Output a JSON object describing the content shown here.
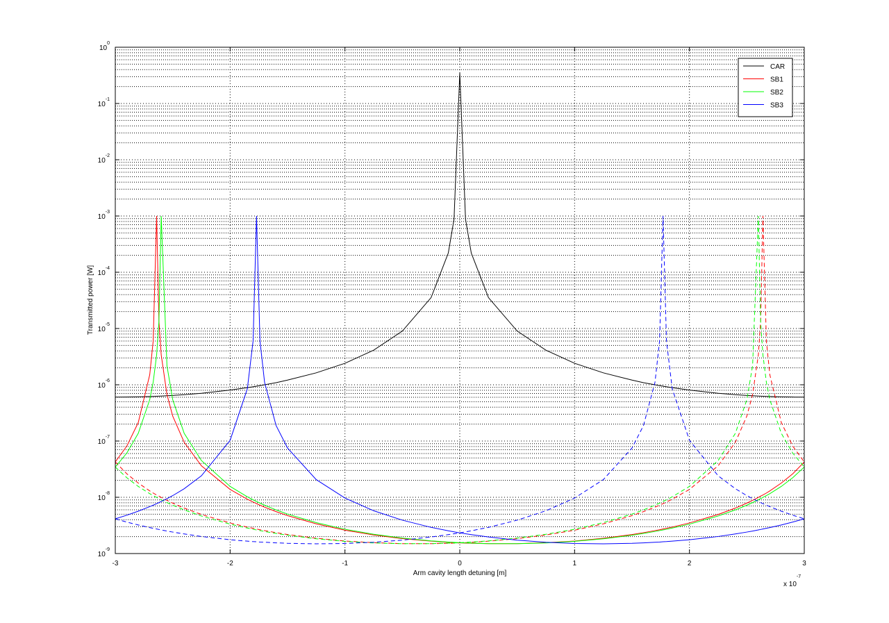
{
  "chart_data": {
    "type": "line",
    "x_label": "Arm cavity length detuning [m]",
    "y_label": "Transmitted power [W]",
    "x_scale_label": "x 10",
    "x_scale_exponent": "-7",
    "log_y": true,
    "grid": true,
    "minor_grid": true,
    "legend": "northeast",
    "xlim": [
      -3,
      3
    ],
    "xticks": [
      -3,
      -2,
      -1,
      0,
      1,
      2,
      3
    ],
    "ylim": [
      1e-09,
      1
    ],
    "yticks": [
      {
        "value": 1e-09,
        "label": "10",
        "exponent": "-9"
      },
      {
        "value": 1e-08,
        "label": "10",
        "exponent": "-8"
      },
      {
        "value": 1e-07,
        "label": "10",
        "exponent": "-7"
      },
      {
        "value": 1e-06,
        "label": "10",
        "exponent": "-6"
      },
      {
        "value": 1e-05,
        "label": "10",
        "exponent": "-5"
      },
      {
        "value": 0.0001,
        "label": "10",
        "exponent": "-4"
      },
      {
        "value": 0.001,
        "label": "10",
        "exponent": "-3"
      },
      {
        "value": 0.01,
        "label": "10",
        "exponent": "-2"
      },
      {
        "value": 0.1,
        "label": "10",
        "exponent": "-1"
      },
      {
        "value": 1,
        "label": "10",
        "exponent": "0"
      }
    ],
    "x": [
      -3,
      -2.9,
      -2.8,
      -2.7,
      -2.67,
      -2.64,
      -2.62,
      -2.6,
      -2.55,
      -2.5,
      -2.4,
      -2.25,
      -2,
      -1.85,
      -1.8,
      -1.77,
      -1.74,
      -1.7,
      -1.6,
      -1.5,
      -1.25,
      -1,
      -0.75,
      -0.5,
      -0.25,
      -0.1,
      -0.05,
      0,
      0.05,
      0.1,
      0.25,
      0.5,
      0.75,
      1,
      1.25,
      1.5,
      1.6,
      1.7,
      1.74,
      1.77,
      1.8,
      1.85,
      2,
      2.25,
      2.4,
      2.5,
      2.55,
      2.6,
      2.62,
      2.64,
      2.67,
      2.7,
      2.8,
      2.9,
      3
    ],
    "series": [
      {
        "name": "CAR",
        "color": "#000000",
        "values": [
          6.03e-07,
          6.05e-07,
          6.1e-07,
          6.19e-07,
          6.22e-07,
          6.25e-07,
          6.28e-07,
          6.31e-07,
          6.38e-07,
          6.47e-07,
          6.67e-07,
          7.07e-07,
          8.05e-07,
          8.89e-07,
          9.22e-07,
          9.44e-07,
          9.66e-07,
          9.99e-07,
          1.09e-06,
          1.21e-06,
          1.63e-06,
          2.41e-06,
          4.12e-06,
          9.01e-06,
          3.54e-05,
          0.00022,
          0.000878,
          0.35,
          0.000878,
          0.00022,
          3.54e-05,
          9.01e-06,
          4.12e-06,
          2.41e-06,
          1.63e-06,
          1.21e-06,
          1.09e-06,
          9.99e-07,
          9.66e-07,
          9.44e-07,
          9.22e-07,
          8.89e-07,
          8.05e-07,
          7.07e-07,
          6.67e-07,
          6.47e-07,
          6.38e-07,
          6.31e-07,
          6.28e-07,
          6.25e-07,
          6.22e-07,
          6.19e-07,
          6.1e-07,
          6.05e-07,
          6.03e-07
        ]
      },
      {
        "name": "SB1",
        "color": "#ff0000",
        "values": [
          4.25e-08,
          8.1e-08,
          2.13e-07,
          1.51e-06,
          6.01e-06,
          0.001,
          1.34e-05,
          3.39e-06,
          6.72e-07,
          2.78e-07,
          9.5e-08,
          3.63e-08,
          1.38e-08,
          9.24e-09,
          8.23e-09,
          7.71e-09,
          7.24e-09,
          6.68e-09,
          5.56e-09,
          4.72e-09,
          3.37e-09,
          2.6e-09,
          2.14e-09,
          1.84e-09,
          1.66e-09,
          1.58e-09,
          1.56e-09,
          1.55e-09,
          1.53e-09,
          1.52e-09,
          1.5e-09,
          1.5e-09,
          1.56e-09,
          1.67e-09,
          1.87e-09,
          2.18e-09,
          2.35e-09,
          2.56e-09,
          2.65e-09,
          2.73e-09,
          2.81e-09,
          2.95e-09,
          3.5e-09,
          4.95e-09,
          6.43e-09,
          7.88e-09,
          8.82e-09,
          9.94e-09,
          1.05e-08,
          1.1e-08,
          1.19e-08,
          1.3e-08,
          1.79e-08,
          2.62e-08,
          4.25e-08
        ],
        "dashed_values": [
          4.25e-08,
          2.62e-08,
          1.79e-08,
          1.3e-08,
          1.19e-08,
          1.1e-08,
          1.05e-08,
          9.94e-09,
          8.82e-09,
          7.88e-09,
          6.43e-09,
          4.95e-09,
          3.5e-09,
          2.95e-09,
          2.81e-09,
          2.73e-09,
          2.65e-09,
          2.56e-09,
          2.35e-09,
          2.18e-09,
          1.87e-09,
          1.67e-09,
          1.56e-09,
          1.5e-09,
          1.5e-09,
          1.52e-09,
          1.53e-09,
          1.55e-09,
          1.56e-09,
          1.58e-09,
          1.66e-09,
          1.84e-09,
          2.14e-09,
          2.6e-09,
          3.37e-09,
          4.72e-09,
          5.56e-09,
          6.68e-09,
          7.24e-09,
          7.71e-09,
          8.23e-09,
          9.24e-09,
          1.38e-08,
          3.63e-08,
          9.5e-08,
          2.78e-07,
          6.72e-07,
          3.39e-06,
          1.34e-05,
          0.001,
          6.01e-06,
          1.51e-06,
          2.13e-07,
          8.1e-08,
          4.25e-08
        ]
      },
      {
        "name": "SB2",
        "color": "#00ff00",
        "values": [
          3.45e-08,
          6.1e-08,
          1.37e-07,
          5.45e-07,
          1.11e-06,
          3.39e-06,
          1.34e-05,
          0.001,
          2.17e-06,
          5.45e-07,
          1.37e-07,
          4.5e-08,
          1.56e-08,
          1.02e-08,
          9.02e-09,
          8.42e-09,
          7.88e-09,
          7.24e-09,
          5.97e-09,
          5.03e-09,
          3.54e-09,
          2.7e-09,
          2.2e-09,
          1.88e-09,
          1.68e-09,
          1.6e-09,
          1.58e-09,
          1.56e-09,
          1.54e-09,
          1.53e-09,
          1.5e-09,
          1.5e-09,
          1.54e-09,
          1.65e-09,
          1.83e-09,
          2.12e-09,
          2.28e-09,
          2.47e-09,
          2.56e-09,
          2.63e-09,
          2.7e-09,
          2.84e-09,
          3.33e-09,
          4.65e-09,
          5.97e-09,
          7.24e-09,
          8.05e-09,
          9.02e-09,
          9.46e-09,
          9.94e-09,
          1.07e-08,
          1.16e-08,
          1.56e-08,
          2.23e-08,
          3.45e-08
        ],
        "dashed_values": [
          3.45e-08,
          2.23e-08,
          1.56e-08,
          1.16e-08,
          1.07e-08,
          9.94e-09,
          9.46e-09,
          9.02e-09,
          8.05e-09,
          7.24e-09,
          5.97e-09,
          4.65e-09,
          3.33e-09,
          2.84e-09,
          2.7e-09,
          2.63e-09,
          2.56e-09,
          2.47e-09,
          2.28e-09,
          2.12e-09,
          1.83e-09,
          1.65e-09,
          1.54e-09,
          1.5e-09,
          1.5e-09,
          1.53e-09,
          1.54e-09,
          1.56e-09,
          1.58e-09,
          1.6e-09,
          1.68e-09,
          1.88e-09,
          2.2e-09,
          2.7e-09,
          3.54e-09,
          5.03e-09,
          5.97e-09,
          7.24e-09,
          7.88e-09,
          8.42e-09,
          9.02e-09,
          1.02e-08,
          1.56e-08,
          4.5e-08,
          1.37e-07,
          5.45e-07,
          2.17e-06,
          0.001,
          1.34e-05,
          3.39e-06,
          1.11e-06,
          5.45e-07,
          1.37e-07,
          6.1e-08,
          3.45e-08
        ]
      },
      {
        "name": "SB3",
        "color": "#0000ff",
        "values": [
          4.14e-09,
          4.8e-09,
          5.66e-09,
          6.82e-09,
          7.24e-09,
          7.71e-09,
          8.05e-09,
          8.42e-09,
          9.46e-09,
          1.07e-08,
          1.42e-08,
          2.41e-08,
          1.03e-07,
          8.5e-07,
          6.01e-06,
          0.001,
          6.01e-06,
          1.11e-06,
          1.89e-07,
          7.52e-08,
          2.06e-08,
          9.7e-09,
          5.76e-09,
          3.92e-09,
          2.92e-09,
          2.54e-09,
          2.43e-09,
          2.33e-09,
          2.25e-09,
          2.17e-09,
          1.97e-09,
          1.73e-09,
          1.59e-09,
          1.51e-09,
          1.49e-09,
          1.52e-09,
          1.55e-09,
          1.59e-09,
          1.6e-09,
          1.62e-09,
          1.63e-09,
          1.66e-09,
          1.76e-09,
          2.01e-09,
          2.23e-09,
          2.41e-09,
          2.51e-09,
          2.63e-09,
          2.68e-09,
          2.73e-09,
          2.81e-09,
          2.89e-09,
          3.22e-09,
          3.63e-09,
          4.14e-09
        ],
        "dashed_values": [
          4.14e-09,
          3.63e-09,
          3.22e-09,
          2.89e-09,
          2.81e-09,
          2.73e-09,
          2.68e-09,
          2.63e-09,
          2.51e-09,
          2.41e-09,
          2.23e-09,
          2.01e-09,
          1.76e-09,
          1.66e-09,
          1.63e-09,
          1.62e-09,
          1.6e-09,
          1.59e-09,
          1.55e-09,
          1.52e-09,
          1.49e-09,
          1.51e-09,
          1.59e-09,
          1.73e-09,
          1.97e-09,
          2.17e-09,
          2.25e-09,
          2.33e-09,
          2.43e-09,
          2.54e-09,
          2.92e-09,
          3.92e-09,
          5.76e-09,
          9.7e-09,
          2.06e-08,
          7.52e-08,
          1.89e-07,
          1.11e-06,
          6.01e-06,
          0.001,
          6.01e-06,
          8.5e-07,
          1.03e-07,
          2.41e-08,
          1.42e-08,
          1.07e-08,
          9.46e-09,
          8.42e-09,
          8.05e-09,
          7.71e-09,
          7.24e-09,
          6.82e-09,
          5.66e-09,
          4.8e-09,
          4.14e-09
        ]
      }
    ]
  }
}
